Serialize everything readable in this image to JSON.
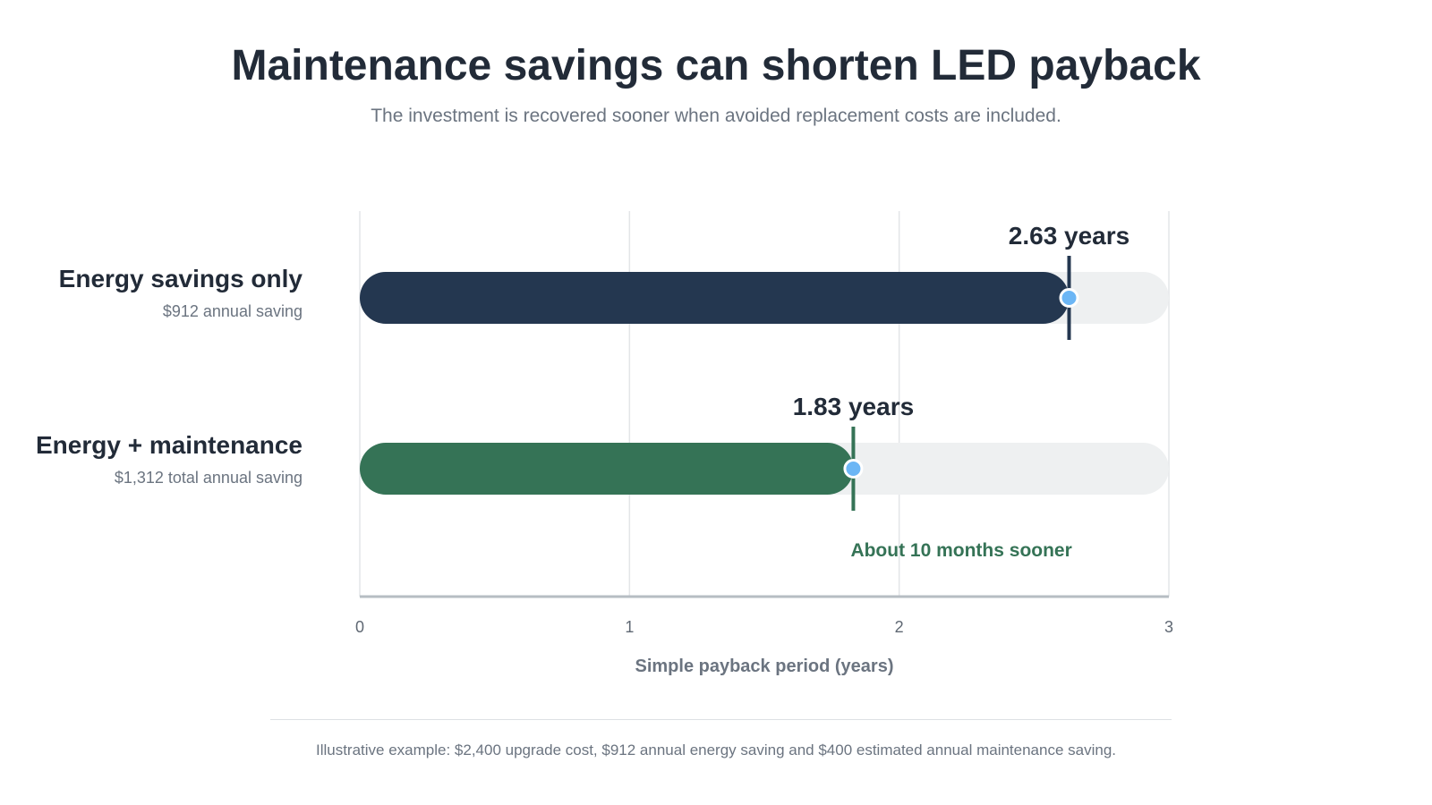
{
  "title": "Maintenance savings can shorten LED payback",
  "subtitle": "The investment is recovered sooner when avoided replacement costs are included.",
  "footnote": "Illustrative example: $2,400 upgrade cost, $912 annual energy saving and $400 estimated annual maintenance saving.",
  "rows": [
    {
      "name": "Energy savings only",
      "sub": "$912 annual saving"
    },
    {
      "name": "Energy + maintenance",
      "sub": "$1,312 total annual saving"
    }
  ],
  "chart_data": {
    "type": "bar",
    "orientation": "horizontal",
    "categories": [
      "Energy savings only",
      "Energy + maintenance"
    ],
    "values": [
      2.63,
      1.83
    ],
    "value_labels": [
      "2.63 years",
      "1.83 years"
    ],
    "xlabel": "Simple payback period (years)",
    "xlim": [
      0,
      3
    ],
    "xticks": [
      0,
      1,
      2,
      3
    ],
    "grid": true,
    "annotation": "About 10 months sooner",
    "colors": {
      "energy_bar": "#243750",
      "maintenance_bar": "#357356",
      "track": "#eef0f1",
      "marker_dot": "#6cb6f5",
      "annotation": "#357356",
      "grid": "#e3e5e8",
      "axis": "#b6bdc3"
    }
  }
}
